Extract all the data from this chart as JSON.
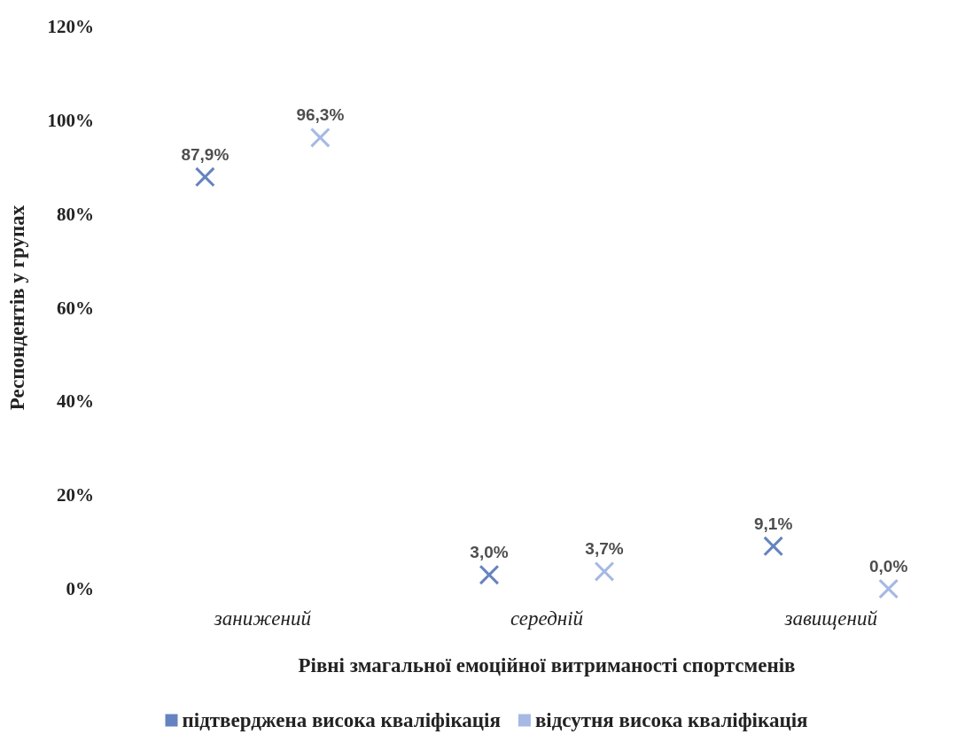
{
  "chart_data": {
    "type": "scatter",
    "xlabel": "Рівні змагальної емоційної витриманості спортсменів",
    "ylabel": "Респондентів у групах",
    "categories": [
      "занижений",
      "середній",
      "завищений"
    ],
    "series": [
      {
        "name": "підтверджена висока кваліфікація",
        "color": "#3f64b0",
        "values": [
          87.9,
          3.0,
          9.1
        ],
        "value_labels": [
          "87,9%",
          "3,0%",
          "9,1%"
        ]
      },
      {
        "name": "відсутня висока кваліфікація",
        "color": "#8fa8dc",
        "values": [
          96.3,
          3.7,
          0.0
        ],
        "value_labels": [
          "96,3%",
          "3,7%",
          "0,0%"
        ]
      }
    ],
    "ylim": [
      0,
      120
    ],
    "yticks": [
      {
        "value": 0,
        "label": "0%"
      },
      {
        "value": 20,
        "label": "20%"
      },
      {
        "value": 40,
        "label": "40%"
      },
      {
        "value": 60,
        "label": "60%"
      },
      {
        "value": 80,
        "label": "80%"
      },
      {
        "value": 100,
        "label": "100%"
      },
      {
        "value": 120,
        "label": "120%"
      }
    ],
    "marker": "cross",
    "grid": false,
    "legend": "bottom"
  }
}
